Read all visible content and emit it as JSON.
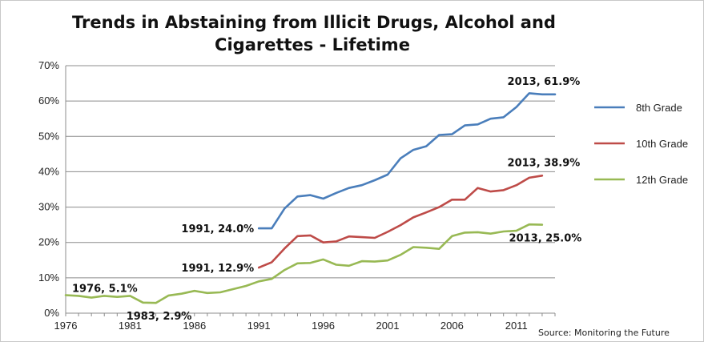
{
  "chart_data": {
    "type": "line",
    "title_line1": "Trends in Abstaining from Illicit Drugs, Alcohol and",
    "title_line2": "Cigarettes - Lifetime",
    "source": "Source: Monitoring the Future",
    "ylim": [
      0,
      70
    ],
    "xlim": [
      1976,
      2014
    ],
    "y_ticks": [
      "0%",
      "10%",
      "20%",
      "30%",
      "40%",
      "50%",
      "60%",
      "70%"
    ],
    "x_ticks": [
      "1976",
      "1981",
      "1986",
      "1991",
      "1996",
      "2001",
      "2006",
      "2011"
    ],
    "grid": "horizontal",
    "legend_placement": "right",
    "series": [
      {
        "name": "8th Grade",
        "color": "#4a7ebb",
        "x": [
          1991,
          1992,
          1993,
          1994,
          1995,
          1996,
          1997,
          1998,
          1999,
          2000,
          2001,
          2002,
          2003,
          2004,
          2005,
          2006,
          2007,
          2008,
          2009,
          2010,
          2011,
          2012,
          2013,
          2014
        ],
        "values": [
          24.0,
          24.0,
          29.6,
          33.0,
          33.4,
          32.4,
          34.0,
          35.4,
          36.2,
          37.6,
          39.2,
          43.8,
          46.2,
          47.2,
          50.4,
          50.6,
          53.1,
          53.4,
          55.0,
          55.4,
          58.3,
          62.2,
          61.9,
          null
        ]
      },
      {
        "name": "10th Grade",
        "color": "#be4b48",
        "x": [
          1991,
          1992,
          1993,
          1994,
          1995,
          1996,
          1997,
          1998,
          1999,
          2000,
          2001,
          2002,
          2003,
          2004,
          2005,
          2006,
          2007,
          2008,
          2009,
          2010,
          2011,
          2012,
          2013
        ],
        "values": [
          12.9,
          14.4,
          18.3,
          21.8,
          22.0,
          20.0,
          20.3,
          21.7,
          21.5,
          21.3,
          23.0,
          24.9,
          27.1,
          28.5,
          30.0,
          32.1,
          32.1,
          35.4,
          34.4,
          34.8,
          36.2,
          38.3,
          38.9
        ]
      },
      {
        "name": "12th Grade",
        "color": "#98b954",
        "x": [
          1976,
          1977,
          1978,
          1979,
          1980,
          1981,
          1982,
          1983,
          1984,
          1985,
          1986,
          1987,
          1988,
          1989,
          1990,
          1991,
          1992,
          1993,
          1994,
          1995,
          1996,
          1997,
          1998,
          1999,
          2000,
          2001,
          2002,
          2003,
          2004,
          2005,
          2006,
          2007,
          2008,
          2009,
          2010,
          2011,
          2012,
          2013
        ],
        "values": [
          5.1,
          4.9,
          4.4,
          4.9,
          4.6,
          4.9,
          3.0,
          2.9,
          5.0,
          5.5,
          6.3,
          5.7,
          5.9,
          6.8,
          7.7,
          9.0,
          9.7,
          12.2,
          14.1,
          14.2,
          15.2,
          13.7,
          13.4,
          14.7,
          14.6,
          14.9,
          16.5,
          18.7,
          18.5,
          18.2,
          21.8,
          22.8,
          22.9,
          22.5,
          23.1,
          23.3,
          25.1,
          25.0
        ]
      }
    ],
    "annotations": [
      {
        "text": "2013, 61.9%",
        "x": 2013,
        "y": 61.9,
        "anchor": "above"
      },
      {
        "text": "2013, 38.9%",
        "x": 2013,
        "y": 38.9,
        "anchor": "above"
      },
      {
        "text": "2013, 25.0%",
        "x": 2013,
        "y": 25.0,
        "anchor": "below"
      },
      {
        "text": "1991, 24.0%",
        "x": 1991,
        "y": 24.0,
        "anchor": "left"
      },
      {
        "text": "1991, 12.9%",
        "x": 1991,
        "y": 12.9,
        "anchor": "left"
      },
      {
        "text": "1976,  5.1%",
        "x": 1976,
        "y": 5.1,
        "anchor": "right"
      },
      {
        "text": "1983,  2.9%",
        "x": 1983,
        "y": 2.9,
        "anchor": "below"
      }
    ]
  }
}
